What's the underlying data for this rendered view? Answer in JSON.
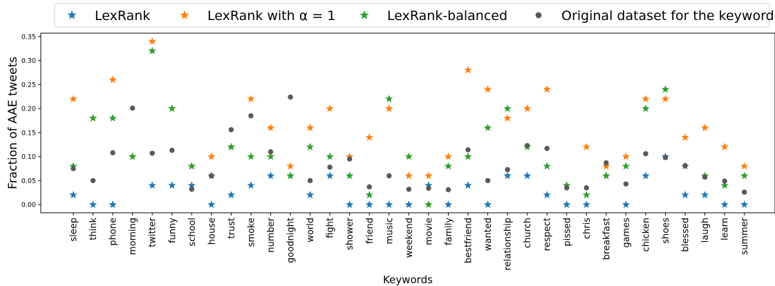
{
  "chart_data": {
    "type": "scatter",
    "xlabel": "Keywords",
    "ylabel": "Fraction of AAE tweets",
    "ylim": [
      -0.017,
      0.357
    ],
    "yticks": [
      "0.00",
      "0.05",
      "0.10",
      "0.15",
      "0.20",
      "0.25",
      "0.30",
      "0.35"
    ],
    "grid": false,
    "legend_position": "top",
    "categories": [
      "sleep",
      "think",
      "phone",
      "morning",
      "twitter",
      "funny",
      "school",
      "house",
      "trust",
      "smoke",
      "number",
      "goodnight",
      "world",
      "fight",
      "shower",
      "friend",
      "music",
      "weekend",
      "movie",
      "family",
      "bestfriend",
      "wanted",
      "relationship",
      "church",
      "respect",
      "pissed",
      "chris",
      "breakfast",
      "games",
      "chicken",
      "shoes",
      "blessed",
      "laugh",
      "learn",
      "summer"
    ],
    "series": [
      {
        "name": "LexRank",
        "marker": "star",
        "color": "#1f77b4",
        "values": [
          0.02,
          0.0,
          0.0,
          0.1,
          0.04,
          0.04,
          0.04,
          0.0,
          0.02,
          0.04,
          0.06,
          0.06,
          0.02,
          0.06,
          0.0,
          0.0,
          0.0,
          0.0,
          0.04,
          0.0,
          0.04,
          0.0,
          0.06,
          0.06,
          0.02,
          0.0,
          0.0,
          0.06,
          0.0,
          0.06,
          0.1,
          0.02,
          0.02,
          0.0,
          0.0
        ]
      },
      {
        "name": "LexRank with α = 1",
        "marker": "star",
        "color": "#ff7f0e",
        "values": [
          0.22,
          0.18,
          0.26,
          0.1,
          0.34,
          0.2,
          0.08,
          0.1,
          0.12,
          0.22,
          0.16,
          0.08,
          0.16,
          0.2,
          0.1,
          0.14,
          0.2,
          0.06,
          0.06,
          0.1,
          0.28,
          0.24,
          0.18,
          0.2,
          0.24,
          0.04,
          0.12,
          0.08,
          0.1,
          0.22,
          0.22,
          0.14,
          0.16,
          0.12,
          0.08
        ]
      },
      {
        "name": "LexRank-balanced",
        "marker": "star",
        "color": "#2ca02c",
        "values": [
          0.08,
          0.18,
          0.18,
          0.1,
          0.32,
          0.2,
          0.08,
          0.06,
          0.12,
          0.1,
          0.1,
          0.06,
          0.12,
          0.1,
          0.06,
          0.02,
          0.22,
          0.1,
          0.0,
          0.08,
          0.1,
          0.16,
          0.2,
          0.12,
          0.08,
          0.04,
          0.02,
          0.06,
          0.08,
          0.2,
          0.24,
          0.08,
          0.06,
          0.04,
          0.06
        ]
      },
      {
        "name": "Original dataset for the keyword",
        "marker": "circle",
        "color": "#595959",
        "values": [
          0.075,
          0.05,
          0.108,
          0.201,
          0.107,
          0.113,
          0.032,
          0.06,
          0.156,
          0.185,
          0.11,
          0.224,
          0.05,
          0.078,
          0.095,
          0.037,
          0.06,
          0.032,
          0.034,
          0.031,
          0.114,
          0.05,
          0.073,
          0.123,
          0.117,
          0.035,
          0.035,
          0.087,
          0.043,
          0.106,
          0.098,
          0.081,
          0.057,
          0.049,
          0.026
        ]
      }
    ]
  }
}
